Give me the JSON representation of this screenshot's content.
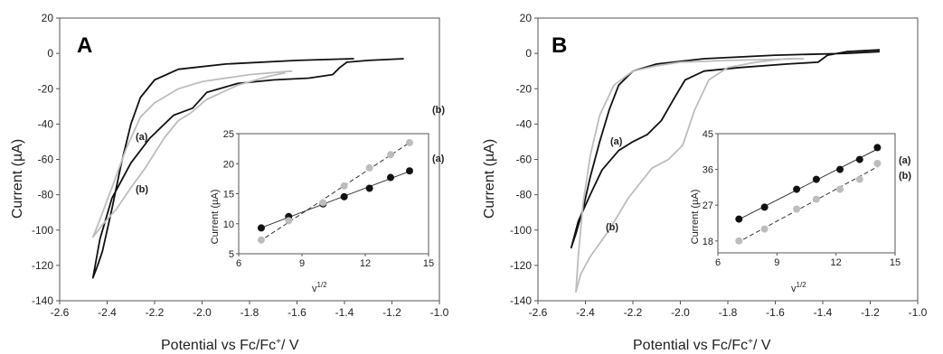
{
  "colors": {
    "a": "#111111",
    "b": "#bdbdbd"
  },
  "chart_data": [
    {
      "type": "line",
      "panel": "A",
      "xlabel": "Potential vs Fc/Fc",
      "xlabel_sup": "+",
      "xlabel_tail": "/ V",
      "ylabel": "Current (µA)",
      "xlim": [
        -2.6,
        -1.0
      ],
      "ylim": [
        -140,
        20
      ],
      "xticks": [
        "-2.6",
        "-2.4",
        "-2.2",
        "-2.0",
        "-1.8",
        "-1.6",
        "-1.4",
        "-1.2",
        "-1.0"
      ],
      "yticks": [
        "20",
        "0",
        "-20",
        "-40",
        "-60",
        "-80",
        "-100",
        "-120",
        "-140"
      ],
      "series": [
        {
          "name": "(a)",
          "color": "#111111",
          "x": [
            -1.36,
            -1.6,
            -1.9,
            -2.1,
            -2.2,
            -2.26,
            -2.3,
            -2.34,
            -2.38,
            -2.42,
            -2.44,
            -2.46,
            -2.43,
            -2.38,
            -2.3,
            -2.22,
            -2.12,
            -2.08,
            -2.04,
            -1.98,
            -1.85,
            -1.7,
            -1.55,
            -1.45,
            -1.42,
            -1.39,
            -1.3,
            -1.15
          ],
          "y": [
            -3,
            -4,
            -6,
            -9,
            -15,
            -25,
            -40,
            -62,
            -88,
            -112,
            -120,
            -127,
            -105,
            -82,
            -62,
            -48,
            -35,
            -33,
            -31,
            -22,
            -17,
            -15,
            -14,
            -12,
            -8,
            -5,
            -4,
            -3
          ]
        },
        {
          "name": "(b)",
          "color": "#bdbdbd",
          "x": [
            -1.62,
            -1.8,
            -2.0,
            -2.1,
            -2.2,
            -2.26,
            -2.32,
            -2.38,
            -2.43,
            -2.46,
            -2.42,
            -2.36,
            -2.3,
            -2.24,
            -2.16,
            -2.1,
            -2.05,
            -1.98,
            -1.85,
            -1.72,
            -1.65
          ],
          "y": [
            -10,
            -12,
            -16,
            -20,
            -28,
            -36,
            -54,
            -76,
            -94,
            -104,
            -97,
            -88,
            -76,
            -65,
            -48,
            -38,
            -34,
            -26,
            -18,
            -13,
            -11
          ]
        }
      ],
      "inset": {
        "xlabel": "v",
        "xlabel_sup": "1/2",
        "ylabel": "Current (µA)",
        "xlim": [
          6,
          15
        ],
        "ylim": [
          5,
          25
        ],
        "xticks": [
          "6",
          "9",
          "12",
          "15"
        ],
        "yticks": [
          "5",
          "10",
          "15",
          "20",
          "25"
        ],
        "series": [
          {
            "name": "(a)",
            "color": "#111111",
            "x": [
              7.07,
              8.37,
              10.0,
              11.0,
              12.2,
              13.2,
              14.1
            ],
            "y": [
              9.3,
              11.2,
              13.3,
              14.5,
              15.9,
              17.7,
              18.8
            ]
          },
          {
            "name": "(b)",
            "color": "#bdbdbd",
            "x": [
              7.07,
              8.37,
              10.0,
              11.0,
              12.2,
              13.2,
              14.1
            ],
            "y": [
              7.3,
              10.5,
              13.5,
              16.3,
              19.3,
              21.5,
              23.5
            ]
          }
        ]
      }
    },
    {
      "type": "line",
      "panel": "B",
      "xlabel": "Potential vs Fc/Fc",
      "xlabel_sup": "+",
      "xlabel_tail": "/ V",
      "ylabel": "Current (µA)",
      "xlim": [
        -2.6,
        -1.0
      ],
      "ylim": [
        -140,
        20
      ],
      "xticks": [
        "-2.6",
        "-2.4",
        "-2.2",
        "-2.0",
        "-1.8",
        "-1.6",
        "-1.4",
        "-1.2",
        "-1.0"
      ],
      "yticks": [
        "20",
        "0",
        "-20",
        "-40",
        "-60",
        "-80",
        "-100",
        "-120",
        "-140"
      ],
      "series": [
        {
          "name": "(a)",
          "color": "#111111",
          "x": [
            -1.16,
            -1.3,
            -1.6,
            -1.9,
            -2.1,
            -2.2,
            -2.26,
            -2.3,
            -2.34,
            -2.38,
            -2.41,
            -2.44,
            -2.46,
            -2.43,
            -2.38,
            -2.33,
            -2.26,
            -2.2,
            -2.14,
            -2.08,
            -2.02,
            -1.98,
            -1.9,
            -1.75,
            -1.55,
            -1.42,
            -1.38,
            -1.3,
            -1.16
          ],
          "y": [
            1,
            0,
            -1,
            -3,
            -6,
            -10,
            -18,
            -32,
            -50,
            -70,
            -88,
            -102,
            -110,
            -95,
            -80,
            -66,
            -55,
            -50,
            -46,
            -38,
            -24,
            -15,
            -10,
            -8,
            -6,
            -5,
            -1,
            1,
            2
          ]
        },
        {
          "name": "(b)",
          "color": "#bdbdbd",
          "x": [
            -1.48,
            -1.8,
            -2.0,
            -2.1,
            -2.2,
            -2.28,
            -2.34,
            -2.38,
            -2.41,
            -2.43,
            -2.44,
            -2.42,
            -2.38,
            -2.3,
            -2.22,
            -2.12,
            -2.05,
            -1.99,
            -1.94,
            -1.88,
            -1.8,
            -1.68,
            -1.55,
            -1.48
          ],
          "y": [
            -3,
            -4,
            -5,
            -7,
            -10,
            -18,
            -35,
            -58,
            -85,
            -115,
            -135,
            -125,
            -115,
            -100,
            -82,
            -65,
            -60,
            -52,
            -32,
            -15,
            -8,
            -5,
            -3,
            -3
          ]
        }
      ],
      "inset": {
        "xlabel": "v",
        "xlabel_sup": "1/2",
        "ylabel": "Current (µA)",
        "xlim": [
          6,
          15
        ],
        "ylim": [
          15,
          45
        ],
        "xticks": [
          "6",
          "9",
          "12",
          "15"
        ],
        "yticks": [
          "18",
          "27",
          "36",
          "45"
        ],
        "series": [
          {
            "name": "(a)",
            "color": "#111111",
            "x": [
              7.07,
              8.37,
              10.0,
              11.0,
              12.2,
              13.2,
              14.1
            ],
            "y": [
              23.5,
              26.5,
              31.0,
              33.5,
              36.0,
              38.5,
              41.5
            ]
          },
          {
            "name": "(b)",
            "color": "#bdbdbd",
            "x": [
              7.07,
              8.37,
              10.0,
              11.0,
              12.2,
              13.2,
              14.1
            ],
            "y": [
              18.0,
              21.0,
              26.0,
              28.5,
              31.0,
              33.5,
              37.5
            ]
          }
        ]
      }
    }
  ]
}
